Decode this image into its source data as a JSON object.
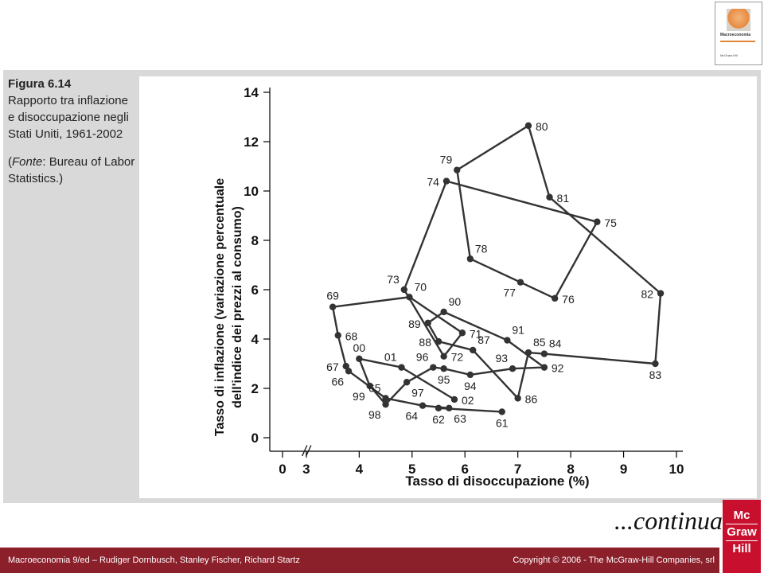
{
  "caption": {
    "figure": "Figura 6.14",
    "title": "Rapporto tra inflazione e disoccupazione negli Stati Uniti, 1961-2002",
    "source_label": "Fonte",
    "source_text": ": Bureau of Labor Statistics.)"
  },
  "continue_label": "...continua",
  "footer": {
    "left": "Macroeconomia 9/ed – Rudiger Dornbusch, Stanley Fischer, Richard Startz",
    "right": "Copyright © 2006 - The McGraw-Hill Companies, srl"
  },
  "logo": {
    "lines": [
      "Mc",
      "Graw",
      "Hill"
    ]
  },
  "cover": {
    "title": "Macroeconomia"
  },
  "colors": {
    "panel": "#d9d9d9",
    "line": "#333333",
    "footer": "#8b1f2a",
    "logo": "#c8102e"
  },
  "chart_data": {
    "type": "line",
    "xlabel": "Tasso di disoccupazione (%)",
    "ylabel_line1": "Tasso di inflazione (variazione percentuale",
    "ylabel_line2": "dell'indice dei prezzi al consumo)",
    "x_axis_break": "//",
    "xticks": [
      0,
      3,
      4,
      5,
      6,
      7,
      8,
      9,
      10
    ],
    "yticks": [
      0,
      2,
      4,
      6,
      8,
      10,
      12,
      14
    ],
    "xlim": [
      2.55,
      10
    ],
    "ylim": [
      0,
      14
    ],
    "points": [
      {
        "label": "61",
        "x": 6.7,
        "y": 1.05,
        "lp": "below"
      },
      {
        "label": "62",
        "x": 5.5,
        "y": 1.2,
        "lp": "below"
      },
      {
        "label": "63",
        "x": 5.7,
        "y": 1.2,
        "lp": "below-right"
      },
      {
        "label": "64",
        "x": 5.2,
        "y": 1.3,
        "lp": "below-left"
      },
      {
        "label": "65",
        "x": 4.5,
        "y": 1.6,
        "lp": "above-left"
      },
      {
        "label": "66",
        "x": 3.8,
        "y": 2.7,
        "lp": "below-left"
      },
      {
        "label": "67",
        "x": 3.75,
        "y": 2.9,
        "lp": "left"
      },
      {
        "label": "68",
        "x": 3.6,
        "y": 4.15,
        "lp": "right"
      },
      {
        "label": "69",
        "x": 3.5,
        "y": 5.3,
        "lp": "above"
      },
      {
        "label": "70",
        "x": 4.95,
        "y": 5.7,
        "lp": "above-right"
      },
      {
        "label": "71",
        "x": 5.95,
        "y": 4.25,
        "lp": "right"
      },
      {
        "label": "72",
        "x": 5.6,
        "y": 3.3,
        "lp": "right"
      },
      {
        "label": "73",
        "x": 4.85,
        "y": 6.0,
        "lp": "above-left"
      },
      {
        "label": "74",
        "x": 5.65,
        "y": 10.4,
        "lp": "left"
      },
      {
        "label": "75",
        "x": 8.5,
        "y": 8.75,
        "lp": "right"
      },
      {
        "label": "76",
        "x": 7.7,
        "y": 5.65,
        "lp": "right"
      },
      {
        "label": "77",
        "x": 7.05,
        "y": 6.3,
        "lp": "below-left"
      },
      {
        "label": "78",
        "x": 6.1,
        "y": 7.25,
        "lp": "above-right"
      },
      {
        "label": "79",
        "x": 5.85,
        "y": 10.85,
        "lp": "above-left"
      },
      {
        "label": "80",
        "x": 7.2,
        "y": 12.65,
        "lp": "right"
      },
      {
        "label": "81",
        "x": 7.6,
        "y": 9.75,
        "lp": "right"
      },
      {
        "label": "82",
        "x": 9.7,
        "y": 5.85,
        "lp": "left"
      },
      {
        "label": "83",
        "x": 9.6,
        "y": 3.0,
        "lp": "below"
      },
      {
        "label": "84",
        "x": 7.5,
        "y": 3.4,
        "lp": "above-right"
      },
      {
        "label": "85",
        "x": 7.2,
        "y": 3.45,
        "lp": "above-right"
      },
      {
        "label": "86",
        "x": 7.0,
        "y": 1.6,
        "lp": "right"
      },
      {
        "label": "87",
        "x": 6.15,
        "y": 3.55,
        "lp": "above-right"
      },
      {
        "label": "88",
        "x": 5.5,
        "y": 3.9,
        "lp": "left"
      },
      {
        "label": "89",
        "x": 5.3,
        "y": 4.65,
        "lp": "left"
      },
      {
        "label": "90",
        "x": 5.6,
        "y": 5.1,
        "lp": "above-right"
      },
      {
        "label": "91",
        "x": 6.8,
        "y": 3.95,
        "lp": "above-right"
      },
      {
        "label": "92",
        "x": 7.5,
        "y": 2.85,
        "lp": "right"
      },
      {
        "label": "93",
        "x": 6.9,
        "y": 2.8,
        "lp": "above-left"
      },
      {
        "label": "94",
        "x": 6.1,
        "y": 2.55,
        "lp": "below"
      },
      {
        "label": "95",
        "x": 5.6,
        "y": 2.8,
        "lp": "below"
      },
      {
        "label": "96",
        "x": 5.4,
        "y": 2.85,
        "lp": "above-left"
      },
      {
        "label": "97",
        "x": 4.9,
        "y": 2.25,
        "lp": "below-right"
      },
      {
        "label": "98",
        "x": 4.5,
        "y": 1.35,
        "lp": "below-left"
      },
      {
        "label": "99",
        "x": 4.2,
        "y": 2.1,
        "lp": "below-left"
      },
      {
        "label": "00",
        "x": 4.0,
        "y": 3.2,
        "lp": "above"
      },
      {
        "label": "01",
        "x": 4.8,
        "y": 2.85,
        "lp": "above-left"
      },
      {
        "label": "02",
        "x": 5.8,
        "y": 1.55,
        "lp": "right"
      }
    ]
  }
}
